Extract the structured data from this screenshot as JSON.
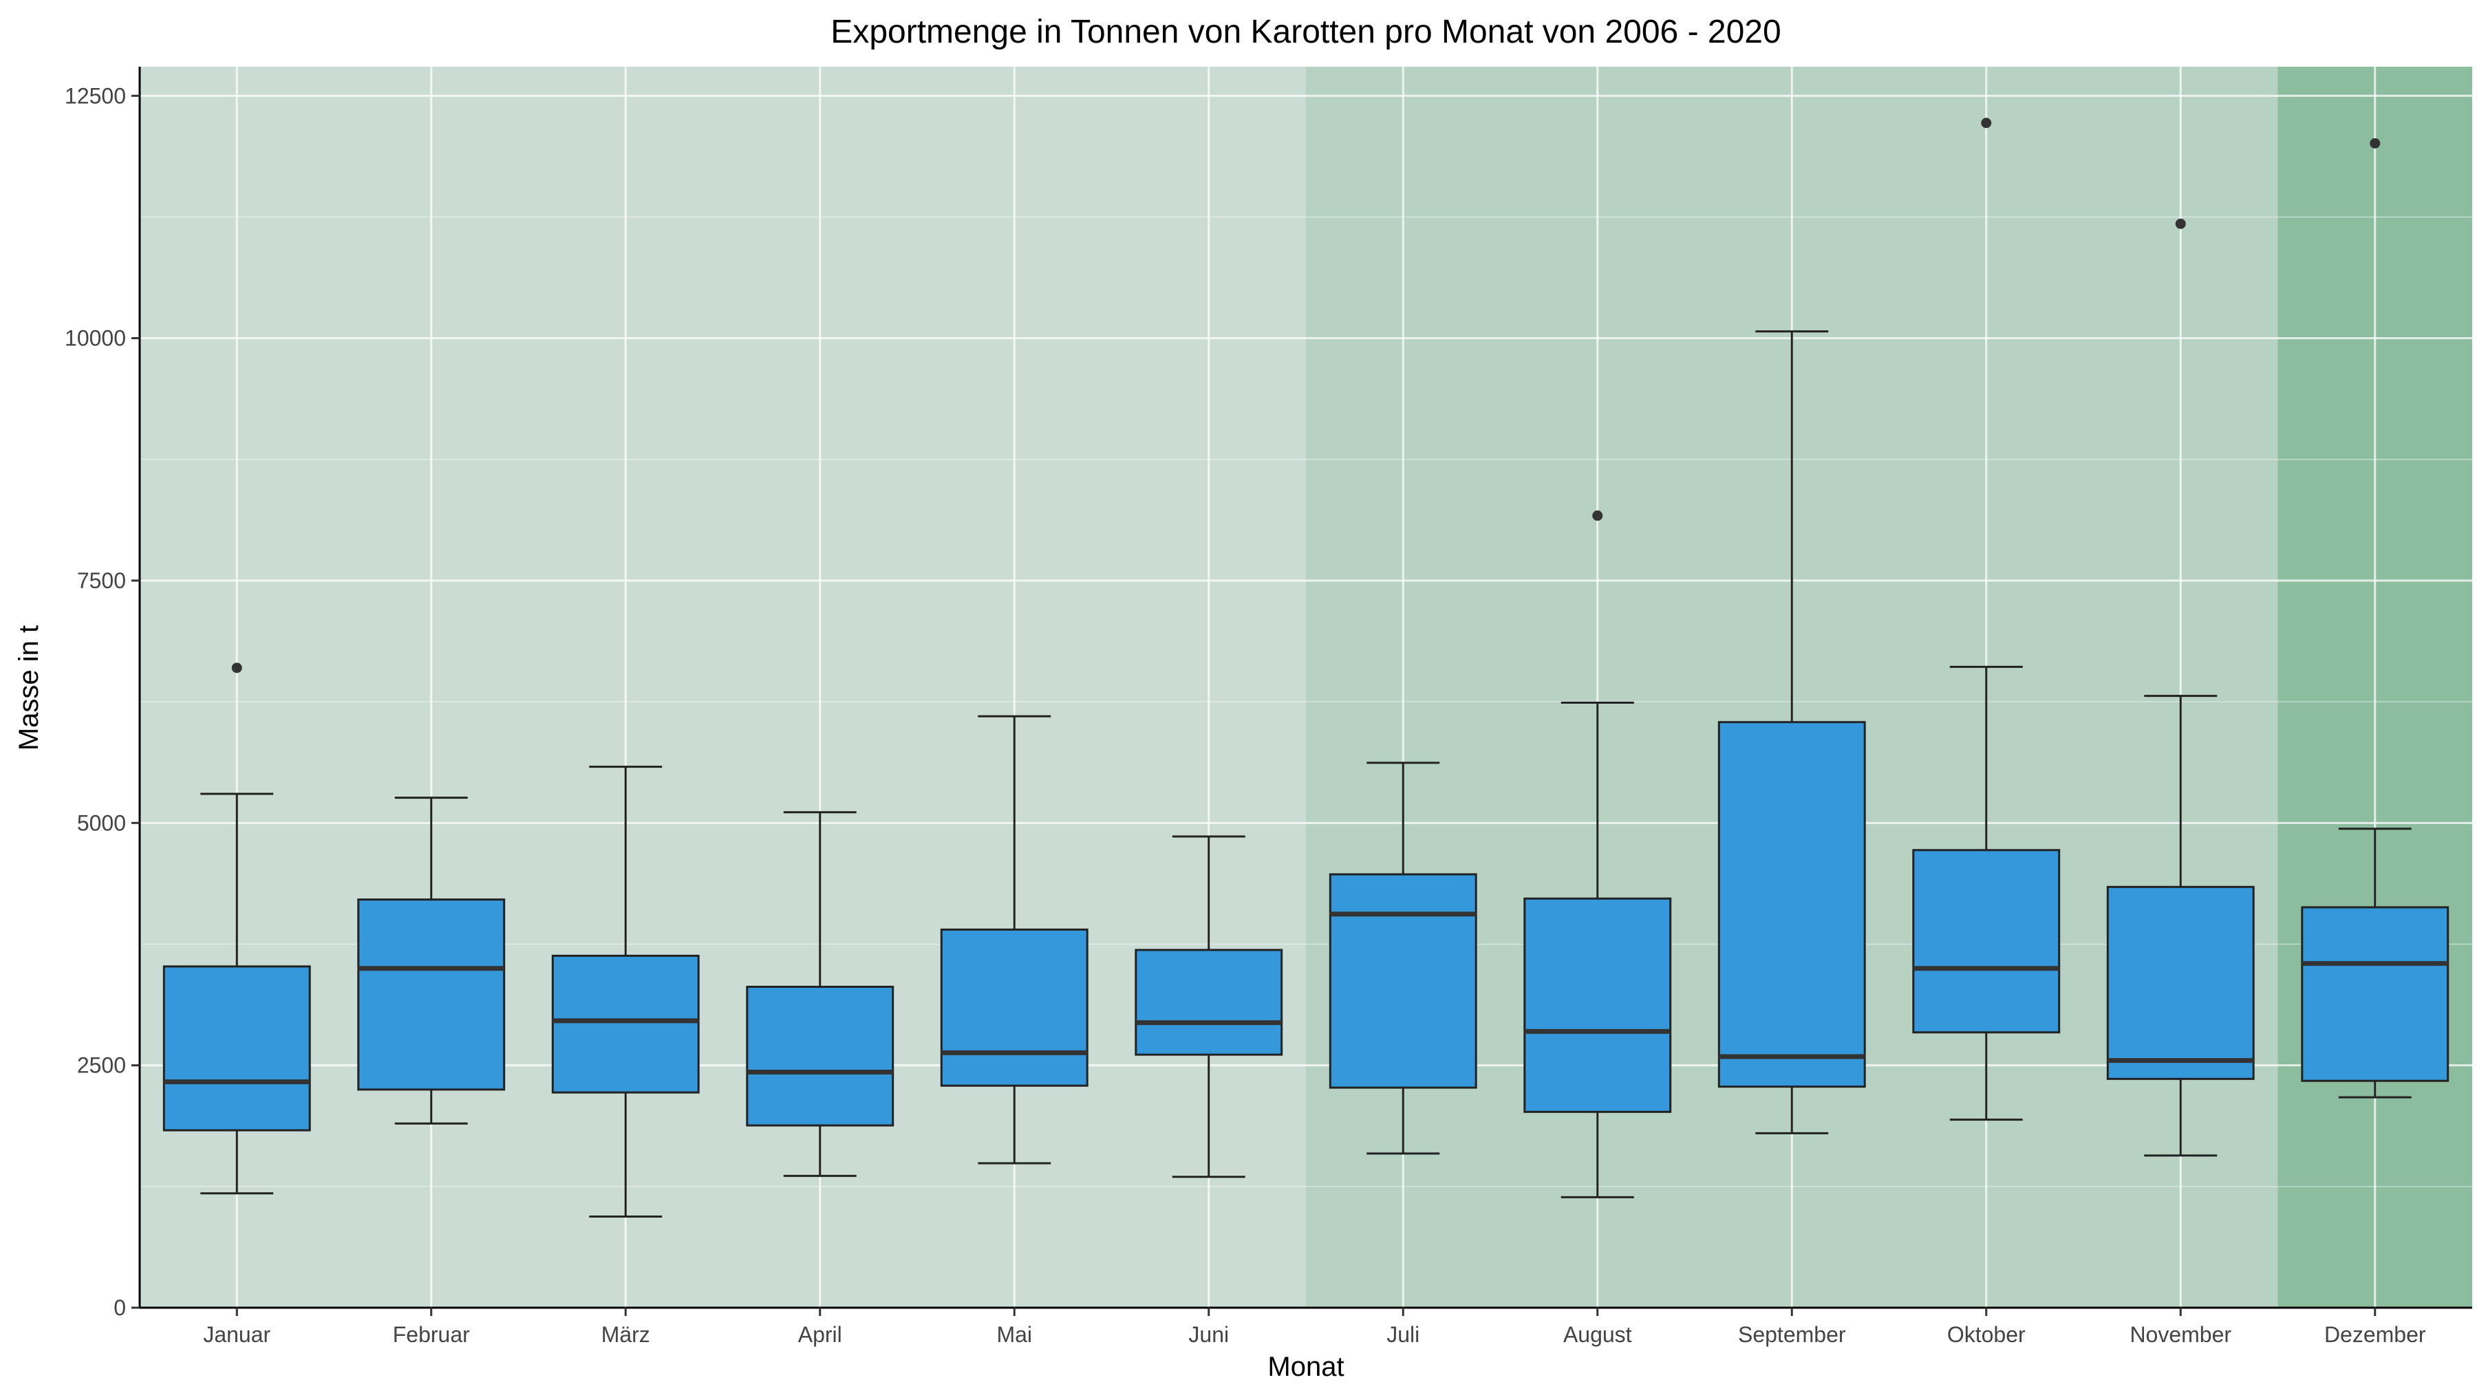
{
  "chart_data": {
    "type": "boxplot",
    "title": "Exportmenge in Tonnen von Karotten pro Monat von 2006 - 2020",
    "xlabel": "Monat",
    "ylabel": "Masse in t",
    "ylim": [
      0,
      12800
    ],
    "yticks": [
      0,
      2500,
      5000,
      7500,
      10000,
      12500
    ],
    "grid": true,
    "legend": "none",
    "box_color": "#3498db",
    "categories": [
      "Januar",
      "Februar",
      "März",
      "April",
      "Mai",
      "Juni",
      "Juli",
      "August",
      "September",
      "Oktober",
      "November",
      "Dezember"
    ],
    "boxes": [
      {
        "min": 1180,
        "q1": 1830,
        "median": 2330,
        "q3": 3520,
        "max": 5300,
        "outliers": [
          6600
        ]
      },
      {
        "min": 1900,
        "q1": 2250,
        "median": 3500,
        "q3": 4210,
        "max": 5260,
        "outliers": []
      },
      {
        "min": 940,
        "q1": 2220,
        "median": 2960,
        "q3": 3630,
        "max": 5580,
        "outliers": []
      },
      {
        "min": 1360,
        "q1": 1880,
        "median": 2430,
        "q3": 3310,
        "max": 5110,
        "outliers": []
      },
      {
        "min": 1490,
        "q1": 2290,
        "median": 2630,
        "q3": 3900,
        "max": 6100,
        "outliers": []
      },
      {
        "min": 1350,
        "q1": 2610,
        "median": 2940,
        "q3": 3690,
        "max": 4860,
        "outliers": []
      },
      {
        "min": 1590,
        "q1": 2270,
        "median": 4060,
        "q3": 4470,
        "max": 5620,
        "outliers": []
      },
      {
        "min": 1140,
        "q1": 2020,
        "median": 2850,
        "q3": 4220,
        "max": 6240,
        "outliers": [
          8170
        ]
      },
      {
        "min": 1800,
        "q1": 2280,
        "median": 2590,
        "q3": 6040,
        "max": 10070,
        "outliers": []
      },
      {
        "min": 1940,
        "q1": 2840,
        "median": 3500,
        "q3": 4720,
        "max": 6610,
        "outliers": [
          12220
        ]
      },
      {
        "min": 1570,
        "q1": 2360,
        "median": 2550,
        "q3": 4340,
        "max": 6310,
        "outliers": [
          11180
        ]
      },
      {
        "min": 2170,
        "q1": 2340,
        "median": 3550,
        "q3": 4130,
        "max": 4940,
        "outliers": [
          12010
        ]
      }
    ],
    "background_bands": [
      {
        "from": "Januar",
        "to": "Juni",
        "color": "#cbdcd4"
      },
      {
        "from": "Juli",
        "to": "November",
        "color": "#b7d1c3"
      },
      {
        "from": "Dezember",
        "to": "Dezember",
        "color": "#8cbd9f"
      }
    ]
  }
}
